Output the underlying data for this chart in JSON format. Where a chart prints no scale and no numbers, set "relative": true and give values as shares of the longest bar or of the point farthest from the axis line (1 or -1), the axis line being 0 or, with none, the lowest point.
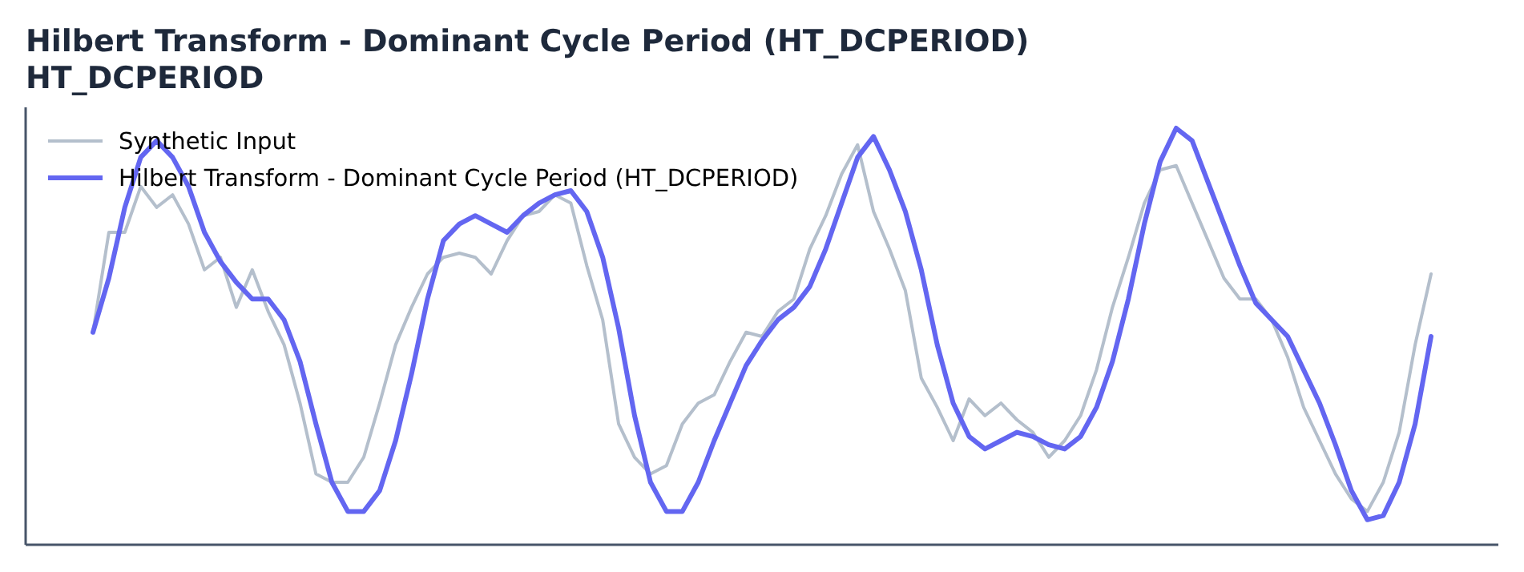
{
  "chart_data": {
    "type": "line",
    "title": "Hilbert Transform - Dominant Cycle Period (HT_DCPERIOD)",
    "subtitle": "HT_DCPERIOD",
    "relative": true,
    "legend": "top left",
    "grid": false,
    "categories": [
      null,
      null,
      null,
      null,
      null,
      null,
      null,
      null,
      null,
      null,
      null,
      null,
      null,
      null,
      null,
      null,
      null,
      null,
      null,
      null,
      null,
      null,
      null,
      null,
      null,
      null,
      null,
      null,
      null,
      null,
      null,
      null,
      null,
      null,
      null,
      null,
      null,
      null,
      null,
      null,
      null,
      null,
      null,
      null,
      null,
      null,
      null,
      null,
      null,
      null,
      null,
      null,
      null,
      null,
      null,
      null,
      null,
      null,
      null,
      null,
      null,
      null,
      null,
      null,
      null,
      null,
      null,
      null,
      null,
      null,
      null,
      null,
      null,
      null,
      null,
      null,
      null,
      null,
      null,
      null,
      null,
      null,
      null,
      null,
      null
    ],
    "series": [
      {
        "name": "Synthetic Input",
        "color": "#b4bfcc",
        "values": [
          0.51,
          0.75,
          0.75,
          0.86,
          0.81,
          0.84,
          0.77,
          0.66,
          0.69,
          0.57,
          0.66,
          0.56,
          0.48,
          0.34,
          0.17,
          0.15,
          0.15,
          0.21,
          0.34,
          0.48,
          0.57,
          0.65,
          0.69,
          0.7,
          0.69,
          0.65,
          0.73,
          0.79,
          0.8,
          0.84,
          0.82,
          0.67,
          0.54,
          0.29,
          0.21,
          0.17,
          0.19,
          0.29,
          0.34,
          0.36,
          0.44,
          0.51,
          0.5,
          0.56,
          0.59,
          0.71,
          0.79,
          0.89,
          0.96,
          0.8,
          0.71,
          0.61,
          0.4,
          0.33,
          0.25,
          0.35,
          0.31,
          0.34,
          0.3,
          0.27,
          0.21,
          0.25,
          0.31,
          0.42,
          0.57,
          0.69,
          0.82,
          0.9,
          0.91,
          0.82,
          0.73,
          0.64,
          0.59,
          0.59,
          0.54,
          0.45,
          0.33,
          0.25,
          0.17,
          0.11,
          0.08,
          0.15,
          0.27,
          0.48,
          0.65
        ]
      },
      {
        "name": "Hilbert Transform - Dominant Cycle Period (HT_DCPERIOD)",
        "color": "#6366f1",
        "values": [
          0.51,
          0.64,
          0.81,
          0.93,
          0.97,
          0.93,
          0.86,
          0.75,
          0.68,
          0.63,
          0.59,
          0.59,
          0.54,
          0.44,
          0.29,
          0.15,
          0.08,
          0.08,
          0.13,
          0.25,
          0.41,
          0.59,
          0.73,
          0.77,
          0.79,
          0.77,
          0.75,
          0.79,
          0.82,
          0.84,
          0.85,
          0.8,
          0.69,
          0.52,
          0.31,
          0.15,
          0.08,
          0.08,
          0.15,
          0.25,
          0.34,
          0.43,
          0.49,
          0.54,
          0.57,
          0.62,
          0.71,
          0.82,
          0.93,
          0.98,
          0.9,
          0.8,
          0.66,
          0.48,
          0.34,
          0.26,
          0.23,
          0.25,
          0.27,
          0.26,
          0.24,
          0.23,
          0.26,
          0.33,
          0.44,
          0.59,
          0.77,
          0.92,
          1.0,
          0.97,
          0.87,
          0.77,
          0.67,
          0.58,
          0.54,
          0.5,
          0.42,
          0.34,
          0.24,
          0.13,
          0.06,
          0.07,
          0.15,
          0.29,
          0.5
        ]
      }
    ]
  }
}
